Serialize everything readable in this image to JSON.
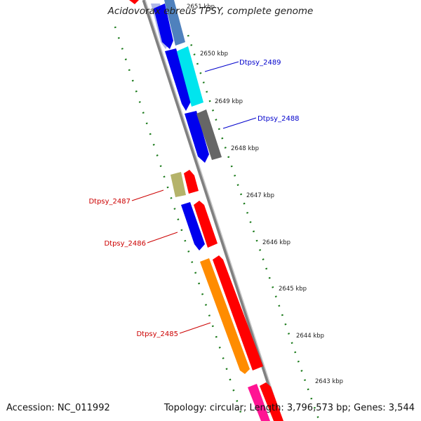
{
  "title": "Acidovorax ebreus TPSY, complete genome",
  "footer": {
    "accession": "Accession: NC_011992",
    "summary": "Topology: circular; Length: 3,796,573 bp; Genes: 3,544"
  },
  "ticks": [
    "2651 kbp",
    "2650 kbp",
    "2649 kbp",
    "2648 kbp",
    "2647 kbp",
    "2646 kbp",
    "2645 kbp",
    "2644 kbp",
    "2643 kbp"
  ],
  "genes": [
    {
      "name": "Dtpsy_2489",
      "color": "#0000cc"
    },
    {
      "name": "Dtpsy_2488",
      "color": "#0000cc"
    },
    {
      "name": "Dtpsy_2487",
      "color": "#cc0000"
    },
    {
      "name": "Dtpsy_2486",
      "color": "#cc0000"
    },
    {
      "name": "Dtpsy_2485",
      "color": "#cc0000"
    }
  ],
  "colors": {
    "blue_gene": "#0000ee",
    "red_gene": "#ff0000",
    "cyan_gene": "#00e5ee",
    "steel_gene": "#4f81bd",
    "gray_gene": "#666666",
    "olive_gene": "#b5b36a",
    "orange_gene": "#ff8c00",
    "pink_gene": "#ff1493",
    "backbone": "#808080",
    "gc_dots": "#1a7a1a"
  }
}
